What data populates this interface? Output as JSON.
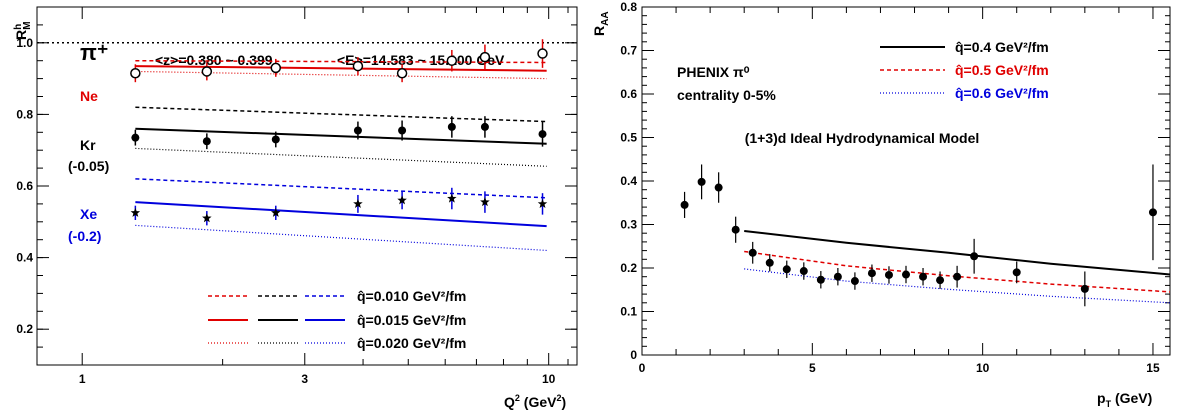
{
  "chart_data": [
    {
      "type": "line",
      "title": "",
      "xlabel": "Q² (GeV²)",
      "ylabel": "R_M^h",
      "xscale": "log",
      "xlim": [
        0.8,
        11.5
      ],
      "ylim": [
        0.1,
        1.1
      ],
      "xticks": [
        1,
        3,
        10
      ],
      "yticks": [
        0.2,
        0.4,
        0.6,
        0.8,
        1.0
      ],
      "ytick_labels": [
        "0.2",
        "0.4",
        "0.6",
        "0.8",
        "1.0"
      ],
      "grid": false,
      "legend_position": "bottom-right",
      "annotations": {
        "particle": "π⁺",
        "z_range": "<z>=0.380 ~ 0.399",
        "e_range": "<E>=14.583 ~ 15.100 GeV",
        "ne": "Ne",
        "kr": "Kr",
        "kr_shift": "(-0.05)",
        "xe": "Xe",
        "xe_shift": "(-0.2)"
      },
      "reference_line": 1.0,
      "legend": [
        "q̂=0.010 GeV²/fm",
        "q̂=0.015 GeV²/fm",
        "q̂=0.020 GeV²/fm"
      ],
      "colors": {
        "Ne": "#e00000",
        "Kr": "#000000",
        "Xe": "#0000dd"
      },
      "data_x": [
        1.3,
        1.85,
        2.6,
        3.9,
        4.85,
        6.2,
        7.3,
        9.7
      ],
      "data": [
        {
          "target": "Ne",
          "marker": "open-circle",
          "color": "#000000",
          "errcolor": "#e00000",
          "y": [
            0.915,
            0.92,
            0.93,
            0.935,
            0.915,
            0.95,
            0.96,
            0.97
          ],
          "err": [
            0.025,
            0.025,
            0.025,
            0.025,
            0.025,
            0.03,
            0.035,
            0.04
          ]
        },
        {
          "target": "Kr",
          "marker": "filled-circle",
          "color": "#000000",
          "errcolor": "#000000",
          "y": [
            0.735,
            0.725,
            0.73,
            0.755,
            0.755,
            0.765,
            0.765,
            0.745
          ],
          "err": [
            0.022,
            0.022,
            0.022,
            0.025,
            0.028,
            0.03,
            0.03,
            0.035
          ]
        },
        {
          "target": "Xe",
          "marker": "star",
          "color": "#000000",
          "errcolor": "#0000dd",
          "y": [
            0.525,
            0.51,
            0.525,
            0.55,
            0.56,
            0.565,
            0.555,
            0.55
          ],
          "err": [
            0.02,
            0.02,
            0.02,
            0.025,
            0.025,
            0.03,
            0.03,
            0.03
          ]
        }
      ],
      "curves_x": [
        1.3,
        9.9
      ],
      "curves": [
        {
          "target": "Ne",
          "qhat": "0.010",
          "style": "dashed",
          "color": "#e00000",
          "y": [
            0.95,
            0.945
          ]
        },
        {
          "target": "Ne",
          "qhat": "0.015",
          "style": "solid",
          "color": "#e00000",
          "y": [
            0.935,
            0.922
          ]
        },
        {
          "target": "Ne",
          "qhat": "0.020",
          "style": "dotted",
          "color": "#e00000",
          "y": [
            0.92,
            0.9
          ]
        },
        {
          "target": "Kr",
          "qhat": "0.010",
          "style": "dashed",
          "color": "#000000",
          "y": [
            0.82,
            0.78
          ]
        },
        {
          "target": "Kr",
          "qhat": "0.015",
          "style": "solid",
          "color": "#000000",
          "y": [
            0.76,
            0.718
          ]
        },
        {
          "target": "Kr",
          "qhat": "0.020",
          "style": "dotted",
          "color": "#000000",
          "y": [
            0.705,
            0.655
          ]
        },
        {
          "target": "Xe",
          "qhat": "0.010",
          "style": "dashed",
          "color": "#0000dd",
          "y": [
            0.62,
            0.567
          ]
        },
        {
          "target": "Xe",
          "qhat": "0.015",
          "style": "solid",
          "color": "#0000dd",
          "y": [
            0.555,
            0.488
          ]
        },
        {
          "target": "Xe",
          "qhat": "0.020",
          "style": "dotted",
          "color": "#0000dd",
          "y": [
            0.49,
            0.42
          ]
        }
      ]
    },
    {
      "type": "line",
      "title": "(1+3)d Ideal Hydrodynamical Model",
      "xlabel": "p_T (GeV)",
      "ylabel": "R_AA",
      "xlim": [
        0,
        15.5
      ],
      "ylim": [
        0,
        0.8
      ],
      "xticks": [
        0,
        5,
        10,
        15
      ],
      "yticks": [
        0,
        0.1,
        0.2,
        0.3,
        0.4,
        0.5,
        0.6,
        0.7,
        0.8
      ],
      "ytick_labels": [
        "0",
        "0.1",
        "0.2",
        "0.3",
        "0.4",
        "0.5",
        "0.6",
        "0.7",
        "0.8"
      ],
      "grid": false,
      "legend_position": "top-right",
      "annotations": {
        "experiment": "PHENIX  π⁰",
        "centrality": "centrality 0-5%"
      },
      "legend": [
        "q̂=0.4 GeV²/fm",
        "q̂=0.5 GeV²/fm",
        "q̂=0.6 GeV²/fm"
      ],
      "series": [
        {
          "name": "q̂=0.4 GeV²/fm",
          "color": "#000000",
          "style": "solid",
          "x": [
            3,
            6,
            9,
            12,
            15.5
          ],
          "y": [
            0.285,
            0.258,
            0.235,
            0.21,
            0.185
          ]
        },
        {
          "name": "q̂=0.5 GeV²/fm",
          "color": "#e00000",
          "style": "dashed",
          "x": [
            3,
            6,
            9,
            12,
            15.5
          ],
          "y": [
            0.238,
            0.205,
            0.182,
            0.163,
            0.145
          ]
        },
        {
          "name": "q̂=0.6 GeV²/fm",
          "color": "#0000dd",
          "style": "dotted",
          "x": [
            3,
            6,
            9,
            12,
            15.5
          ],
          "y": [
            0.198,
            0.17,
            0.151,
            0.135,
            0.12
          ]
        }
      ],
      "points": {
        "x": [
          1.25,
          1.75,
          2.25,
          2.75,
          3.25,
          3.75,
          4.25,
          4.75,
          5.25,
          5.75,
          6.25,
          6.75,
          7.25,
          7.75,
          8.25,
          8.75,
          9.25,
          9.75,
          11.0,
          13.0,
          15.0
        ],
        "y": [
          0.345,
          0.398,
          0.385,
          0.288,
          0.235,
          0.212,
          0.197,
          0.193,
          0.173,
          0.18,
          0.17,
          0.188,
          0.184,
          0.185,
          0.18,
          0.172,
          0.18,
          0.227,
          0.19,
          0.152,
          0.328
        ],
        "err": [
          0.03,
          0.04,
          0.035,
          0.03,
          0.025,
          0.02,
          0.02,
          0.02,
          0.02,
          0.02,
          0.02,
          0.02,
          0.02,
          0.02,
          0.02,
          0.02,
          0.025,
          0.04,
          0.025,
          0.04,
          0.11
        ]
      }
    }
  ]
}
